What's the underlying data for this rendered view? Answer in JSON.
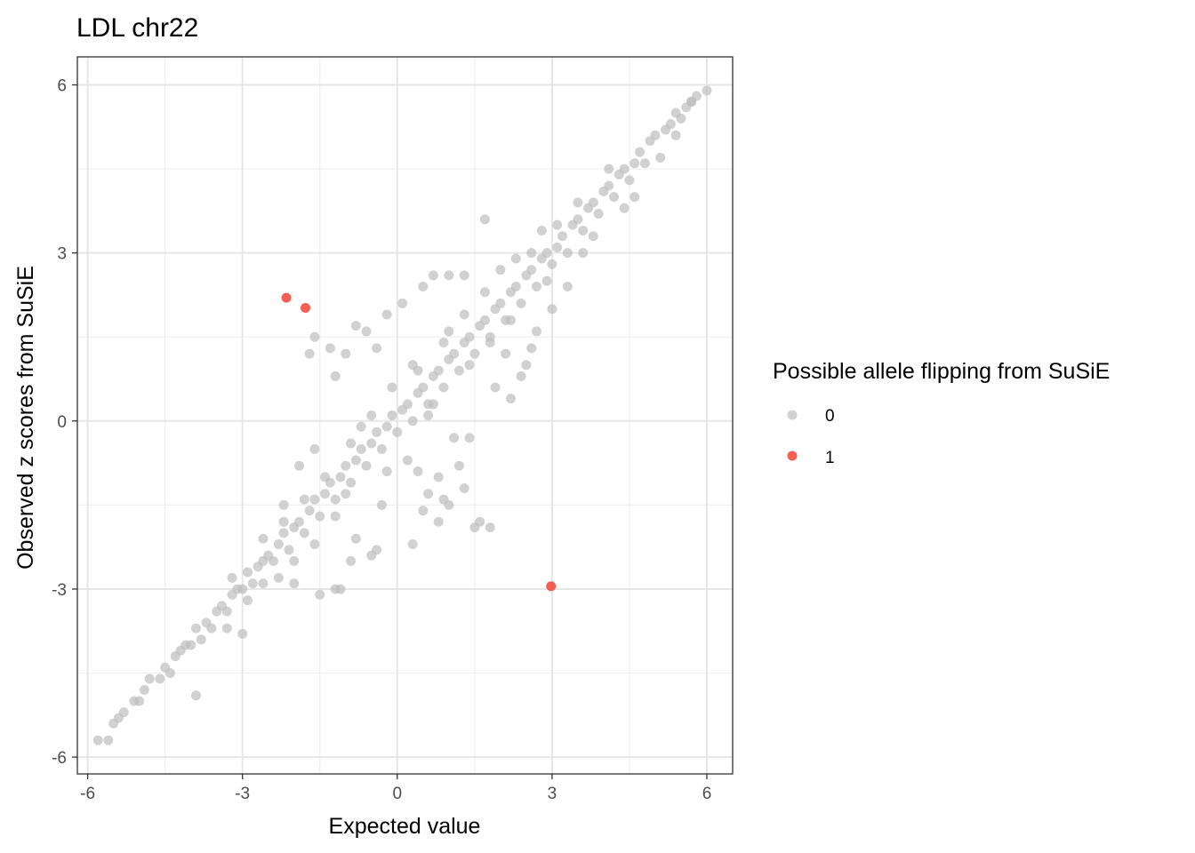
{
  "chart_data": {
    "type": "scatter",
    "title": "LDL chr22",
    "xlabel": "Expected value",
    "ylabel": "Observed z scores from SuSiE",
    "xlim": [
      -6.2,
      6.5
    ],
    "ylim": [
      -6.3,
      6.5
    ],
    "xticks": [
      -6,
      -3,
      0,
      3,
      6
    ],
    "xtick_labels": [
      "-6",
      "-3",
      "0",
      "3",
      "6"
    ],
    "yticks": [
      -6,
      -3,
      0,
      3,
      6
    ],
    "ytick_labels": [
      "-6",
      "-3",
      "0",
      "3",
      "6"
    ],
    "grid": true,
    "legend": {
      "title": "Possible allele flipping from SuSiE",
      "placement": "right",
      "entries": [
        {
          "label": "0",
          "color": "#bebebe"
        },
        {
          "label": "1",
          "color": "#f44336"
        }
      ]
    },
    "series": [
      {
        "name": "0",
        "color": "#bebebe",
        "points": [
          [
            -5.8,
            -5.7
          ],
          [
            -5.6,
            -5.7
          ],
          [
            -5.5,
            -5.4
          ],
          [
            -5.4,
            -5.3
          ],
          [
            -5.3,
            -5.2
          ],
          [
            -5.1,
            -5.0
          ],
          [
            -5.0,
            -5.0
          ],
          [
            -4.9,
            -4.8
          ],
          [
            -4.8,
            -4.6
          ],
          [
            -4.6,
            -4.6
          ],
          [
            -4.5,
            -4.4
          ],
          [
            -4.4,
            -4.5
          ],
          [
            -4.3,
            -4.2
          ],
          [
            -4.2,
            -4.1
          ],
          [
            -4.1,
            -4.0
          ],
          [
            -4.0,
            -4.0
          ],
          [
            -3.9,
            -3.7
          ],
          [
            -3.8,
            -3.9
          ],
          [
            -3.7,
            -3.6
          ],
          [
            -3.6,
            -3.7
          ],
          [
            -3.5,
            -3.4
          ],
          [
            -3.4,
            -3.3
          ],
          [
            -3.3,
            -3.4
          ],
          [
            -3.2,
            -3.1
          ],
          [
            -3.1,
            -3.0
          ],
          [
            -3.0,
            -3.0
          ],
          [
            -2.9,
            -2.7
          ],
          [
            -2.8,
            -2.9
          ],
          [
            -2.7,
            -2.6
          ],
          [
            -2.6,
            -2.5
          ],
          [
            -2.5,
            -2.4
          ],
          [
            -2.4,
            -2.5
          ],
          [
            -2.3,
            -2.2
          ],
          [
            -2.2,
            -2.0
          ],
          [
            -2.1,
            -2.3
          ],
          [
            -2.0,
            -1.9
          ],
          [
            -1.9,
            -1.8
          ],
          [
            -1.8,
            -2.0
          ],
          [
            -1.7,
            -1.6
          ],
          [
            -1.6,
            -1.4
          ],
          [
            -1.5,
            -1.7
          ],
          [
            -1.4,
            -1.3
          ],
          [
            -1.3,
            -1.1
          ],
          [
            -1.2,
            -1.4
          ],
          [
            -1.1,
            -1.0
          ],
          [
            -1.0,
            -0.8
          ],
          [
            -0.9,
            -1.1
          ],
          [
            -0.8,
            -0.7
          ],
          [
            -0.7,
            -0.5
          ],
          [
            -0.6,
            -0.8
          ],
          [
            -0.5,
            -0.4
          ],
          [
            -0.4,
            -0.2
          ],
          [
            -0.3,
            -0.5
          ],
          [
            -0.2,
            -0.1
          ],
          [
            -0.1,
            0.1
          ],
          [
            0.0,
            -0.2
          ],
          [
            0.1,
            0.2
          ],
          [
            0.2,
            0.3
          ],
          [
            0.3,
            0.0
          ],
          [
            0.4,
            0.5
          ],
          [
            0.5,
            0.6
          ],
          [
            0.6,
            0.3
          ],
          [
            0.7,
            0.8
          ],
          [
            0.8,
            0.9
          ],
          [
            0.9,
            0.6
          ],
          [
            1.0,
            1.1
          ],
          [
            1.1,
            1.2
          ],
          [
            1.2,
            0.9
          ],
          [
            1.3,
            1.4
          ],
          [
            1.4,
            1.5
          ],
          [
            1.5,
            1.2
          ],
          [
            1.6,
            1.7
          ],
          [
            1.7,
            1.8
          ],
          [
            1.8,
            1.5
          ],
          [
            1.9,
            2.0
          ],
          [
            2.0,
            2.1
          ],
          [
            2.1,
            1.8
          ],
          [
            2.2,
            2.3
          ],
          [
            2.3,
            2.4
          ],
          [
            2.4,
            2.1
          ],
          [
            2.5,
            2.6
          ],
          [
            2.6,
            2.7
          ],
          [
            2.7,
            2.4
          ],
          [
            2.8,
            2.9
          ],
          [
            2.9,
            3.0
          ],
          [
            3.0,
            2.8
          ],
          [
            3.1,
            3.1
          ],
          [
            3.2,
            3.3
          ],
          [
            3.3,
            3.0
          ],
          [
            3.4,
            3.5
          ],
          [
            3.5,
            3.6
          ],
          [
            3.6,
            3.4
          ],
          [
            3.7,
            3.8
          ],
          [
            3.8,
            3.9
          ],
          [
            3.9,
            3.7
          ],
          [
            4.0,
            4.1
          ],
          [
            4.1,
            4.2
          ],
          [
            4.2,
            4.0
          ],
          [
            4.3,
            4.4
          ],
          [
            4.4,
            4.5
          ],
          [
            4.5,
            4.3
          ],
          [
            4.6,
            4.6
          ],
          [
            4.7,
            4.8
          ],
          [
            4.8,
            4.6
          ],
          [
            4.9,
            5.0
          ],
          [
            5.0,
            5.1
          ],
          [
            5.2,
            5.2
          ],
          [
            5.3,
            5.3
          ],
          [
            5.4,
            5.5
          ],
          [
            5.5,
            5.4
          ],
          [
            5.6,
            5.6
          ],
          [
            5.7,
            5.7
          ],
          [
            5.8,
            5.8
          ],
          [
            6.0,
            5.9
          ],
          [
            -3.9,
            -4.9
          ],
          [
            -3.3,
            -3.7
          ],
          [
            -3.0,
            -3.8
          ],
          [
            -2.6,
            -2.1
          ],
          [
            -2.2,
            -1.5
          ],
          [
            -2.0,
            -2.9
          ],
          [
            -1.9,
            -0.8
          ],
          [
            -1.6,
            -0.5
          ],
          [
            -1.5,
            -3.1
          ],
          [
            -1.2,
            -3.0
          ],
          [
            -1.1,
            -3.0
          ],
          [
            -0.9,
            -2.5
          ],
          [
            -0.8,
            -2.1
          ],
          [
            -0.5,
            -2.4
          ],
          [
            -0.4,
            -2.3
          ],
          [
            -0.3,
            -1.5
          ],
          [
            -0.8,
            1.7
          ],
          [
            -0.6,
            1.6
          ],
          [
            -0.4,
            1.3
          ],
          [
            -1.0,
            1.2
          ],
          [
            -1.3,
            1.3
          ],
          [
            -1.6,
            1.5
          ],
          [
            -1.7,
            1.2
          ],
          [
            -1.2,
            0.8
          ],
          [
            -0.2,
            1.9
          ],
          [
            0.1,
            2.1
          ],
          [
            0.5,
            2.4
          ],
          [
            0.7,
            2.6
          ],
          [
            1.0,
            2.6
          ],
          [
            1.3,
            2.6
          ],
          [
            1.7,
            3.6
          ],
          [
            1.4,
            -0.3
          ],
          [
            1.2,
            -0.8
          ],
          [
            0.8,
            -1.0
          ],
          [
            0.6,
            -1.3
          ],
          [
            1.0,
            -1.5
          ],
          [
            1.3,
            -1.2
          ],
          [
            1.5,
            -1.9
          ],
          [
            0.8,
            -1.8
          ],
          [
            0.5,
            -1.6
          ],
          [
            1.6,
            -1.8
          ],
          [
            1.8,
            -1.9
          ],
          [
            0.3,
            -2.2
          ],
          [
            0.9,
            -1.4
          ],
          [
            1.1,
            -0.3
          ],
          [
            0.4,
            -0.9
          ],
          [
            2.5,
            1.0
          ],
          [
            2.6,
            1.3
          ],
          [
            2.7,
            1.6
          ],
          [
            2.4,
            0.8
          ],
          [
            2.1,
            1.2
          ],
          [
            1.9,
            0.6
          ],
          [
            2.2,
            0.4
          ],
          [
            3.0,
            2.0
          ],
          [
            3.3,
            2.4
          ],
          [
            3.6,
            3.0
          ],
          [
            3.8,
            3.3
          ],
          [
            4.6,
            4.0
          ],
          [
            4.4,
            3.8
          ],
          [
            5.1,
            4.7
          ],
          [
            5.4,
            5.1
          ],
          [
            5.7,
            5.7
          ],
          [
            2.8,
            3.4
          ],
          [
            3.1,
            3.5
          ],
          [
            3.5,
            3.9
          ],
          [
            4.1,
            4.5
          ],
          [
            0.2,
            -0.7
          ],
          [
            -0.1,
            0.6
          ],
          [
            0.3,
            1.0
          ],
          [
            -0.5,
            0.1
          ],
          [
            0.6,
            0.1
          ],
          [
            -0.9,
            -0.4
          ],
          [
            0.9,
            1.4
          ],
          [
            -1.2,
            -1.7
          ],
          [
            1.3,
            1.9
          ],
          [
            -1.6,
            -2.2
          ],
          [
            1.7,
            2.3
          ],
          [
            -2.0,
            -2.5
          ],
          [
            2.0,
            2.7
          ],
          [
            -2.3,
            -2.8
          ],
          [
            2.3,
            2.9
          ],
          [
            -0.2,
            -0.9
          ],
          [
            0.4,
            0.9
          ],
          [
            -0.7,
            -0.1
          ],
          [
            0.7,
            0.3
          ],
          [
            -1.0,
            -1.3
          ],
          [
            1.0,
            1.6
          ],
          [
            -1.4,
            -1.0
          ],
          [
            1.4,
            1.0
          ],
          [
            -1.8,
            -1.4
          ],
          [
            1.8,
            1.4
          ],
          [
            -2.2,
            -1.8
          ],
          [
            2.2,
            1.8
          ],
          [
            -2.6,
            -2.9
          ],
          [
            2.6,
            3.0
          ],
          [
            -2.9,
            -3.2
          ],
          [
            2.9,
            2.5
          ],
          [
            -3.2,
            -2.8
          ]
        ]
      },
      {
        "name": "1",
        "color": "#f44336",
        "points": [
          [
            -2.15,
            2.2
          ],
          [
            -1.78,
            2.02
          ],
          [
            2.98,
            -2.95
          ]
        ]
      }
    ]
  }
}
